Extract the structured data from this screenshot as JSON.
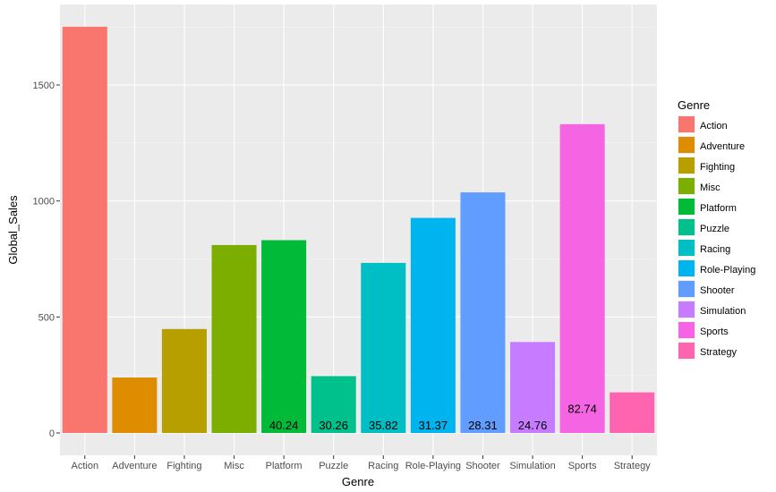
{
  "chart_data": {
    "type": "bar",
    "xlabel": "Genre",
    "ylabel": "Global_Sales",
    "ylim": [
      0,
      1800
    ],
    "yticks": [
      0,
      500,
      1000,
      1500
    ],
    "grid": true,
    "legend_title": "Genre",
    "legend_position": "right",
    "categories": [
      "Action",
      "Adventure",
      "Fighting",
      "Misc",
      "Platform",
      "Puzzle",
      "Racing",
      "Role-Playing",
      "Shooter",
      "Simulation",
      "Sports",
      "Strategy"
    ],
    "values": [
      1751,
      239,
      448,
      810,
      831,
      245,
      733,
      927,
      1037,
      392,
      1331,
      175
    ],
    "colors": [
      "#F8766D",
      "#DE8C00",
      "#B79F00",
      "#7CAE00",
      "#00BA38",
      "#00C08B",
      "#00BFC4",
      "#00B4F0",
      "#619CFF",
      "#C77CFF",
      "#F564E3",
      "#FF64B0"
    ],
    "annotations": [
      {
        "category": "Platform",
        "text": "40.24"
      },
      {
        "category": "Puzzle",
        "text": "30.26"
      },
      {
        "category": "Racing",
        "text": "35.82"
      },
      {
        "category": "Role-Playing",
        "text": "31.37"
      },
      {
        "category": "Shooter",
        "text": "28.31"
      },
      {
        "category": "Simulation",
        "text": "24.76"
      },
      {
        "category": "Sports",
        "text": "82.74"
      }
    ]
  }
}
